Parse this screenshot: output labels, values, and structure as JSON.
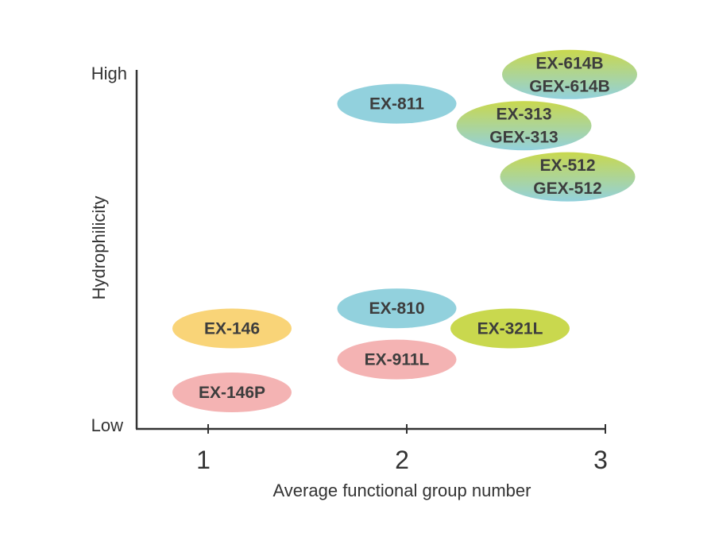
{
  "chart_data": {
    "type": "scatter",
    "title": "",
    "xlabel": "Average functional group number",
    "ylabel": "Hydrophilicity",
    "xlim": [
      0.65,
      3.0
    ],
    "ylim": [
      0,
      10
    ],
    "xticks": [
      "1",
      "2",
      "3"
    ],
    "ytick_low": "Low",
    "ytick_high": "High",
    "grid": false,
    "legend": "none",
    "points": [
      {
        "name": "EX-146P",
        "labels": [
          "EX-146P"
        ],
        "x": 1.12,
        "y": 1.0,
        "fill": "#f4b3b3"
      },
      {
        "name": "EX-146",
        "labels": [
          "EX-146"
        ],
        "x": 1.12,
        "y": 2.75,
        "fill": "#f9d478"
      },
      {
        "name": "EX-911L",
        "labels": [
          "EX-911L"
        ],
        "x": 1.95,
        "y": 1.9,
        "fill": "#f4b3b3"
      },
      {
        "name": "EX-810",
        "labels": [
          "EX-810"
        ],
        "x": 1.95,
        "y": 3.3,
        "fill": "#92d1dd"
      },
      {
        "name": "EX-321L",
        "labels": [
          "EX-321L"
        ],
        "x": 2.52,
        "y": 2.75,
        "fill": "#c9d84e"
      },
      {
        "name": "EX-811",
        "labels": [
          "EX-811"
        ],
        "x": 1.95,
        "y": 8.9,
        "fill": "#92d1dd"
      },
      {
        "name": "EX-614B / GEX-614B",
        "labels": [
          "EX-614B",
          "GEX-614B"
        ],
        "x": 2.82,
        "y": 9.7,
        "gradient": [
          "#c9d84e",
          "#92d1dd"
        ]
      },
      {
        "name": "EX-313 / GEX-313",
        "labels": [
          "EX-313",
          "GEX-313"
        ],
        "x": 2.59,
        "y": 8.3,
        "gradient": [
          "#c9d84e",
          "#92d1dd"
        ]
      },
      {
        "name": "EX-512 / GEX-512",
        "labels": [
          "EX-512",
          "GEX-512"
        ],
        "x": 2.81,
        "y": 6.9,
        "gradient": [
          "#c9d84e",
          "#92d1dd"
        ]
      }
    ]
  }
}
